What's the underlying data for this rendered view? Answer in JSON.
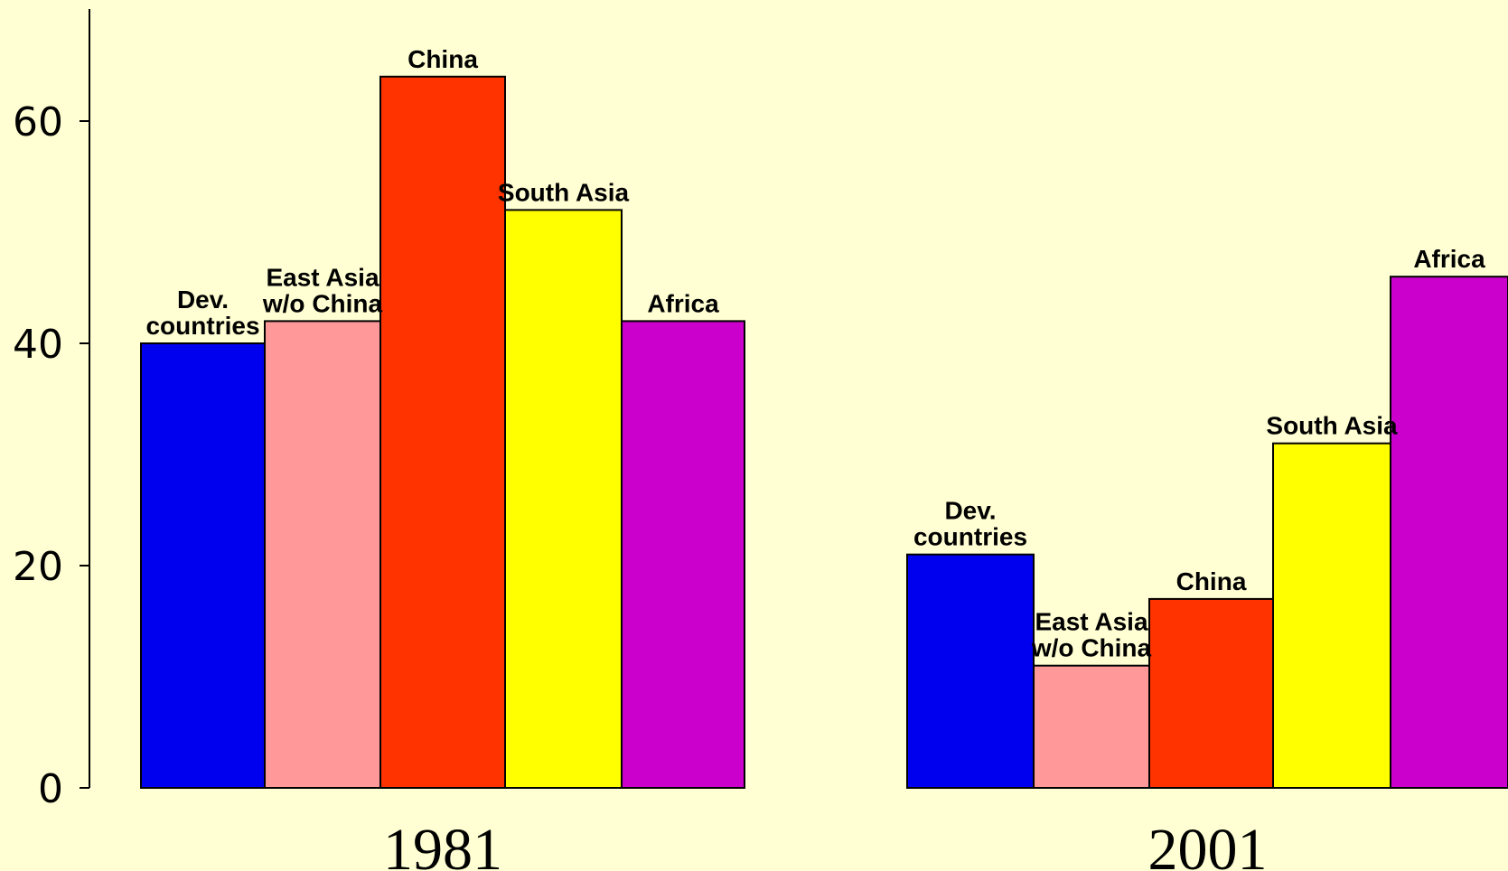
{
  "chart_data": {
    "type": "bar",
    "categories": [
      "1981",
      "2001"
    ],
    "series": [
      {
        "name": "Dev. countries",
        "label_lines": [
          "Dev.",
          "countries"
        ],
        "color": "#0000ee",
        "values": [
          40,
          21
        ]
      },
      {
        "name": "East Asia w/o China",
        "label_lines": [
          "East Asia",
          "w/o China"
        ],
        "color": "#ff9999",
        "values": [
          42,
          11
        ]
      },
      {
        "name": "China",
        "label_lines": [
          "China"
        ],
        "color": "#ff3300",
        "values": [
          64,
          17
        ]
      },
      {
        "name": "South Asia",
        "label_lines": [
          "South Asia"
        ],
        "color": "#ffff00",
        "values": [
          52,
          31
        ]
      },
      {
        "name": "Africa",
        "label_lines": [
          "Africa"
        ],
        "color": "#cc00cc",
        "values": [
          42,
          46
        ]
      }
    ],
    "y_ticks": [
      "0",
      "20",
      "40",
      "60"
    ],
    "ylim": [
      0,
      70
    ],
    "title": "",
    "xlabel": "",
    "ylabel": "",
    "grid": false,
    "legend": "none (labels above bars)"
  }
}
